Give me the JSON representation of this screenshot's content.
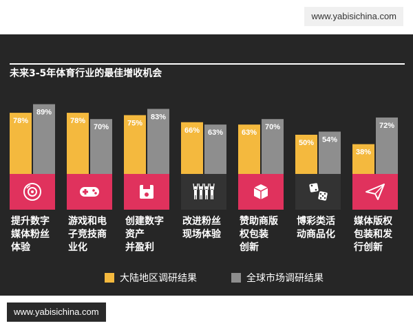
{
  "watermark_top": "www.yabisichina.com",
  "watermark_bottom": "www.yabisichina.com",
  "chart_data": {
    "type": "bar",
    "title": "未来3-5年体育行业的最佳增收机会",
    "categories": [
      [
        "提升数字",
        "媒体粉丝",
        "体验"
      ],
      [
        "游戏和电",
        "子竞技商",
        "业化"
      ],
      [
        "创建数字",
        "资产",
        "并盈利"
      ],
      [
        "改进粉丝",
        "现场体验"
      ],
      [
        "赞助商版",
        "权包装",
        "创新"
      ],
      [
        "博彩类活",
        "动商品化"
      ],
      [
        "媒体版权",
        "包装和发",
        "行创新"
      ]
    ],
    "icons": [
      "vinyl-record-icon",
      "gamepad-icon",
      "floppy-disk-icon",
      "crowd-fans-icon",
      "package-box-icon",
      "dice-icon",
      "paper-plane-icon"
    ],
    "series": [
      {
        "name": "大陆地区调研结果",
        "color": "#f4b93e",
        "values": [
          78,
          78,
          75,
          66,
          63,
          50,
          38
        ],
        "labels": [
          "78%",
          "78%",
          "75%",
          "66%",
          "63%",
          "50%",
          "38%"
        ]
      },
      {
        "name": "全球市场调研结果",
        "color": "#8e8e8e",
        "values": [
          89,
          70,
          83,
          63,
          70,
          54,
          72
        ],
        "labels": [
          "89%",
          "70%",
          "83%",
          "63%",
          "70%",
          "54%",
          "72%"
        ]
      }
    ],
    "icon_band_colors": [
      "#e0325d",
      "#e0325d",
      "#e0325d",
      "#333333",
      "#e0325d",
      "#333333",
      "#e0325d"
    ],
    "ylim": [
      0,
      100
    ],
    "legend": "bottom"
  }
}
